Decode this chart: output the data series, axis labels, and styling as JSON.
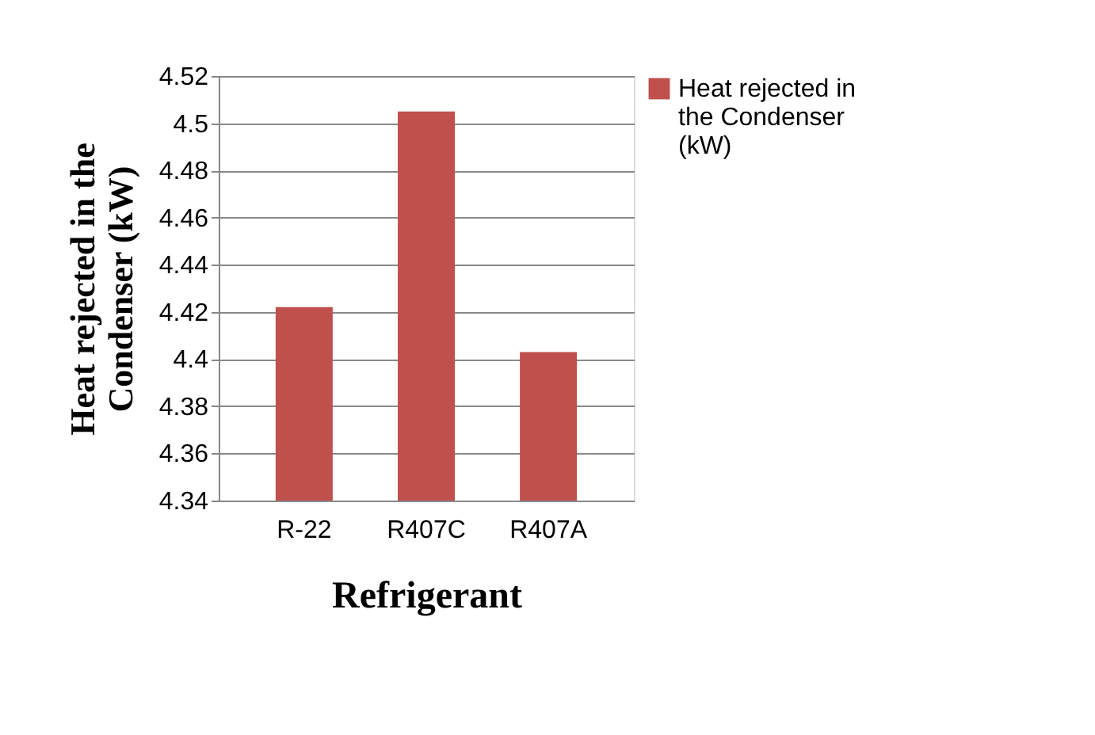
{
  "chart_data": {
    "type": "bar",
    "xlabel": "Refrigerant",
    "ylabel": "Heat rejected in the Condenser (kW)",
    "categories": [
      "R-22",
      "R407C",
      "R407A"
    ],
    "series": [
      {
        "name": "Heat rejected in the Condenser (kW)",
        "color": "#c0504d",
        "values": [
          4.422,
          4.505,
          4.403
        ]
      }
    ],
    "ylim": [
      4.34,
      4.52
    ],
    "yticks": [
      4.34,
      4.36,
      4.38,
      4.4,
      4.42,
      4.44,
      4.46,
      4.48,
      4.5,
      4.52
    ],
    "grid": "y",
    "legend": "right"
  }
}
